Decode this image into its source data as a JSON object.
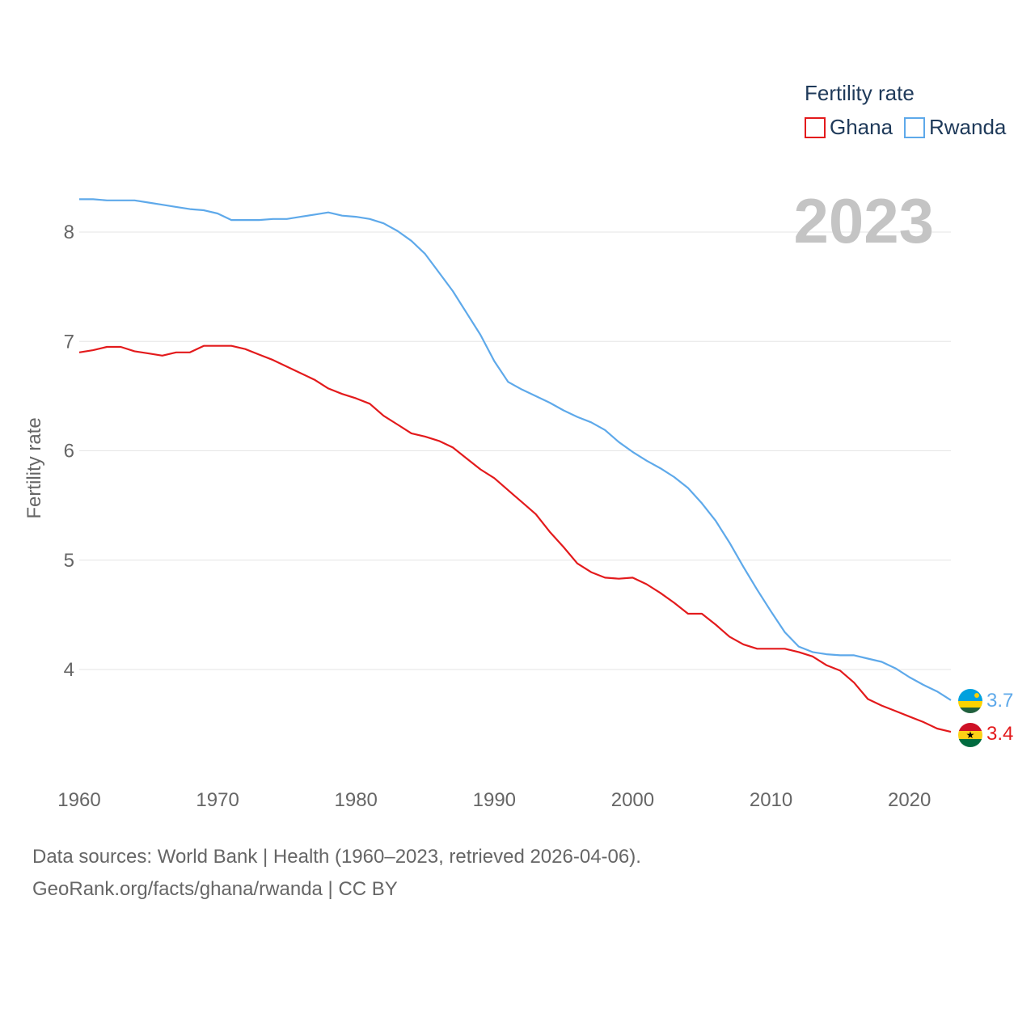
{
  "chart_data": {
    "type": "line",
    "title": "",
    "year_label": "2023",
    "xlabel": "",
    "ylabel": "Fertility rate",
    "xlim": [
      1960,
      2023
    ],
    "ylim": [
      3.0,
      8.8
    ],
    "x_ticks": [
      1960,
      1970,
      1980,
      1990,
      2000,
      2010,
      2020
    ],
    "y_ticks": [
      4,
      5,
      6,
      7,
      8
    ],
    "grid": true,
    "legend": {
      "title": "Fertility rate",
      "position": "top-right",
      "entries": [
        "Ghana",
        "Rwanda"
      ]
    },
    "x": [
      1960,
      1961,
      1962,
      1963,
      1964,
      1965,
      1966,
      1967,
      1968,
      1969,
      1970,
      1971,
      1972,
      1973,
      1974,
      1975,
      1976,
      1977,
      1978,
      1979,
      1980,
      1981,
      1982,
      1983,
      1984,
      1985,
      1986,
      1987,
      1988,
      1989,
      1990,
      1991,
      1992,
      1993,
      1994,
      1995,
      1996,
      1997,
      1998,
      1999,
      2000,
      2001,
      2002,
      2003,
      2004,
      2005,
      2006,
      2007,
      2008,
      2009,
      2010,
      2011,
      2012,
      2013,
      2014,
      2015,
      2016,
      2017,
      2018,
      2019,
      2020,
      2021,
      2022,
      2023
    ],
    "series": [
      {
        "name": "Ghana",
        "color": "#e31a1c",
        "end_label": "3.4",
        "values": [
          6.9,
          6.92,
          6.95,
          6.95,
          6.91,
          6.89,
          6.87,
          6.9,
          6.9,
          6.96,
          6.96,
          6.96,
          6.93,
          6.88,
          6.83,
          6.77,
          6.71,
          6.65,
          6.57,
          6.52,
          6.48,
          6.43,
          6.32,
          6.24,
          6.16,
          6.13,
          6.09,
          6.03,
          5.93,
          5.83,
          5.75,
          5.64,
          5.53,
          5.42,
          5.26,
          5.12,
          4.97,
          4.89,
          4.84,
          4.83,
          4.84,
          4.78,
          4.7,
          4.61,
          4.51,
          4.51,
          4.41,
          4.3,
          4.23,
          4.19,
          4.19,
          4.19,
          4.16,
          4.12,
          4.04,
          3.99,
          3.88,
          3.73,
          3.67,
          3.62,
          3.57,
          3.52,
          3.46,
          3.43
        ]
      },
      {
        "name": "Rwanda",
        "color": "#5ea9ea",
        "end_label": "3.7",
        "values": [
          8.3,
          8.3,
          8.29,
          8.29,
          8.29,
          8.27,
          8.25,
          8.23,
          8.21,
          8.2,
          8.17,
          8.11,
          8.11,
          8.11,
          8.12,
          8.12,
          8.14,
          8.16,
          8.18,
          8.15,
          8.14,
          8.12,
          8.08,
          8.01,
          7.92,
          7.8,
          7.63,
          7.46,
          7.26,
          7.06,
          6.82,
          6.63,
          6.56,
          6.5,
          6.44,
          6.37,
          6.31,
          6.26,
          6.19,
          6.08,
          5.99,
          5.91,
          5.84,
          5.76,
          5.66,
          5.52,
          5.36,
          5.16,
          4.94,
          4.73,
          4.53,
          4.34,
          4.21,
          4.16,
          4.14,
          4.13,
          4.13,
          4.1,
          4.07,
          4.01,
          3.93,
          3.86,
          3.8,
          3.72
        ]
      }
    ]
  },
  "footer": {
    "line1": "Data sources: World Bank | Health (1960–2023, retrieved 2026-04-06).",
    "line2": "GeoRank.org/facts/ghana/rwanda | CC BY"
  },
  "flags": {
    "ghana": {
      "icon": "ghana-flag-icon",
      "colors": [
        "#ce1126",
        "#fcd116",
        "#006b3f"
      ]
    },
    "rwanda": {
      "icon": "rwanda-flag-icon",
      "colors": [
        "#00a1de",
        "#fad201",
        "#20603d"
      ]
    }
  },
  "colors": {
    "grid": "#e6e6e6",
    "tick": "#666666",
    "watermark": "#c4c4c4"
  }
}
